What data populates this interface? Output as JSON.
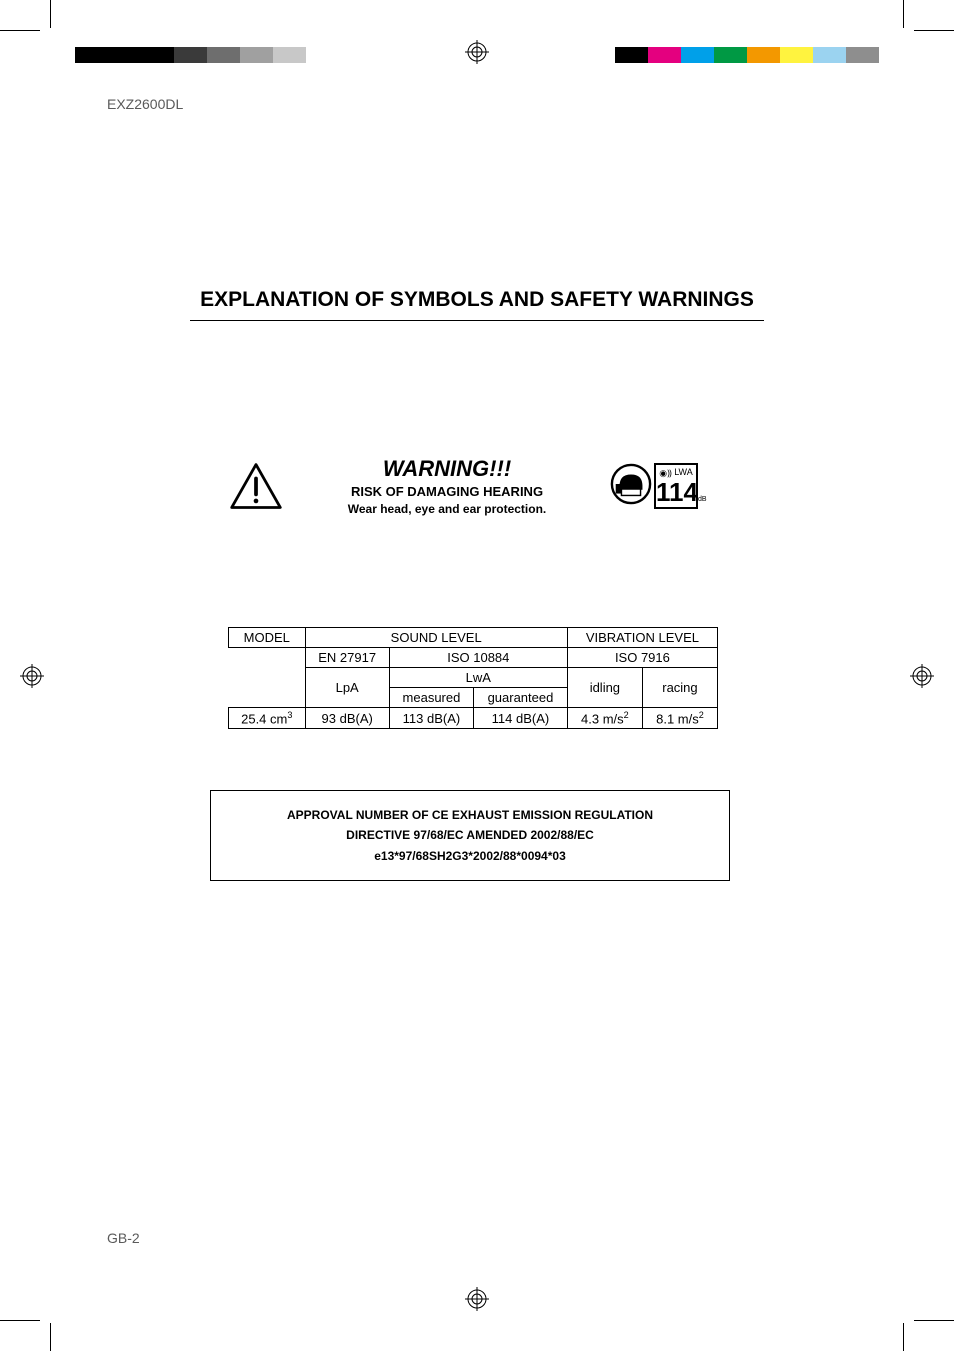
{
  "model_label": "EXZ2600DL",
  "main_title": "EXPLANATION OF SYMBOLS AND SAFETY WARNINGS",
  "warning": {
    "title": "WARNING!!!",
    "risk": "RISK OF DAMAGING HEARING",
    "wear": "Wear head, eye and ear protection.",
    "lwa_label_top": "LWA",
    "lwa_number": "114",
    "lwa_db": "dB"
  },
  "table": {
    "headers": {
      "model": "MODEL",
      "sound_level": "SOUND LEVEL",
      "vibration_level": "VIBRATION LEVEL",
      "en27917": "EN 27917",
      "iso10884": "ISO 10884",
      "iso7916": "ISO 7916",
      "lpa": "LpA",
      "lwa": "LwA",
      "measured": "measured",
      "guaranteed": "guaranteed",
      "idling": "idling",
      "racing": "racing"
    },
    "row": {
      "displacement": "25.4 cm³",
      "lpa_val": "93 dB(A)",
      "lwa_measured": "113 dB(A)",
      "lwa_guaranteed": "114 dB(A)",
      "vib_idling": "4.3 m/s²",
      "vib_racing": "8.1 m/s²"
    }
  },
  "approval": {
    "line1": "APPROVAL NUMBER OF CE EXHAUST EMISSION REGULATION",
    "line2": "DIRECTIVE 97/68/EC AMENDED 2002/88/EC",
    "line3": "e13*97/68SH2G3*2002/88*0094*03"
  },
  "page_num": "GB-2",
  "colors": {
    "left_bar": [
      "#000000",
      "#000000",
      "#000000",
      "#3a3a3a",
      "#6e6e6e",
      "#a0a0a0",
      "#c8c8c8",
      "#ffffff"
    ],
    "right_bar": [
      "#000000",
      "#e4007f",
      "#00a0e9",
      "#009944",
      "#f39800",
      "#fff33f",
      "#9bd3f0",
      "#8e8e8e"
    ]
  }
}
